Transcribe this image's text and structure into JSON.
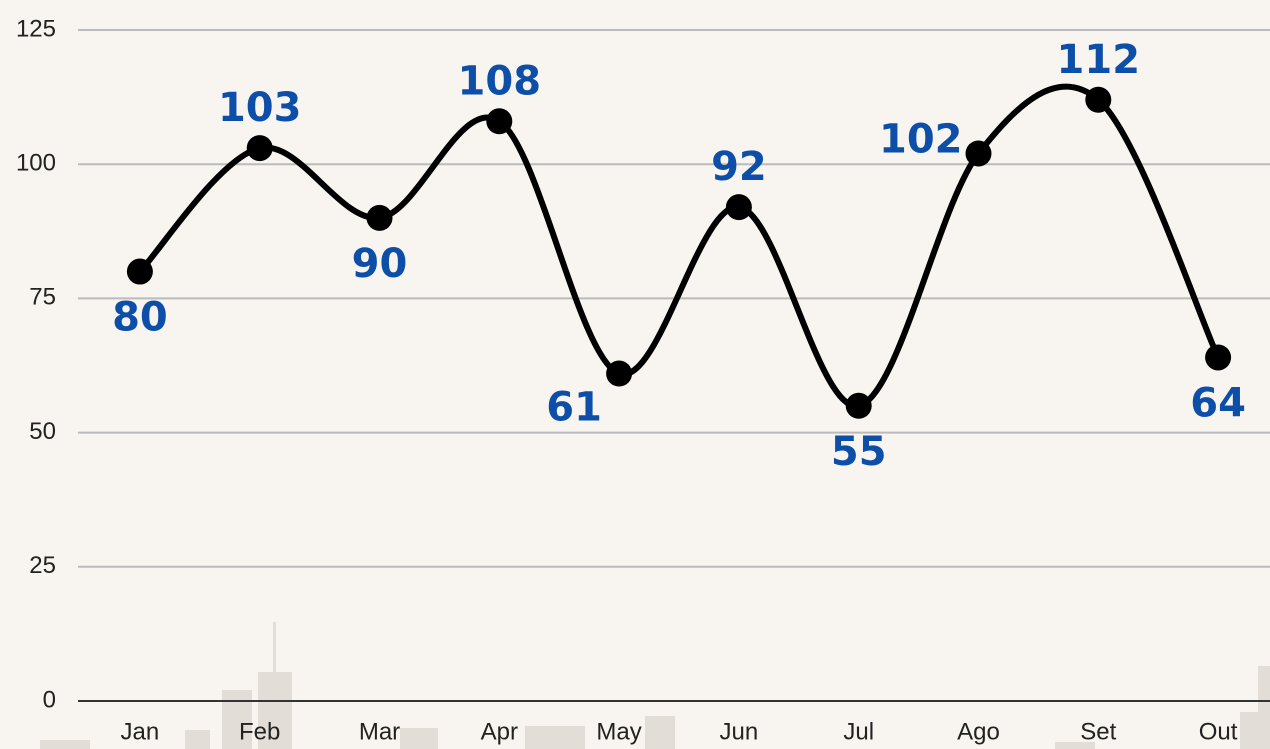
{
  "chart_data": {
    "type": "line",
    "categories": [
      "Jan",
      "Feb",
      "Mar",
      "Apr",
      "May",
      "Jun",
      "Jul",
      "Ago",
      "Set",
      "Out"
    ],
    "values": [
      80,
      103,
      90,
      108,
      61,
      92,
      55,
      102,
      112,
      64
    ],
    "color": "#000000",
    "label_color": "#0d4fa8",
    "ylim": [
      0,
      125
    ],
    "yticks": [
      0,
      25,
      50,
      75,
      100,
      125
    ],
    "grid": true
  }
}
